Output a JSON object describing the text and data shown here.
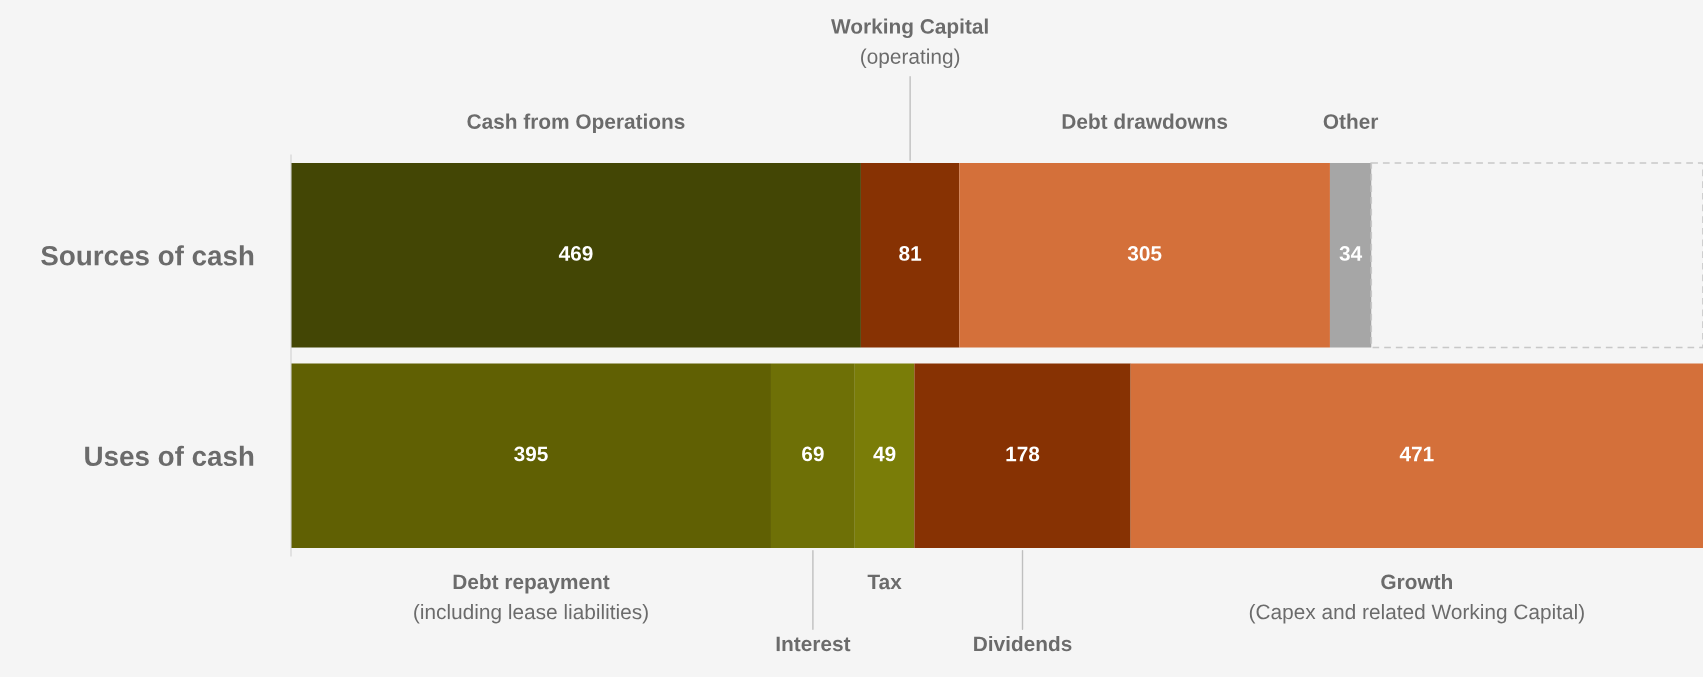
{
  "chart_data": {
    "type": "bar",
    "orientation": "horizontal",
    "stacked": true,
    "data_labels": true,
    "categories": [
      "Sources of cash",
      "Uses of cash"
    ],
    "series": [
      {
        "name": "Cash from Operations",
        "color": "#434605",
        "values": [
          469,
          null
        ]
      },
      {
        "name": "Working Capital\n(operating)",
        "color": "#873203",
        "values": [
          81,
          null
        ]
      },
      {
        "name": "Debt drawdowns",
        "color": "#d4703a",
        "values": [
          305,
          null
        ]
      },
      {
        "name": "Other",
        "color": "#a6a6a6",
        "values": [
          34,
          null
        ]
      },
      {
        "color": "#c8c8c8",
        "line_style": "dashed",
        "values": [
          273,
          null
        ],
        "value_labels": [
          null,
          null
        ]
      },
      {
        "name": "Debt repayment\n(including lease liabilities)",
        "color": "#606003",
        "values": [
          null,
          395
        ]
      },
      {
        "name": "Interest",
        "color": "#6e7006",
        "values": [
          null,
          69
        ]
      },
      {
        "name": "Tax",
        "color": "#7a7d08",
        "values": [
          null,
          49
        ]
      },
      {
        "name": "Dividends",
        "color": "#873203",
        "values": [
          null,
          178
        ]
      },
      {
        "name": "Growth\n(Capex and related Working Capital)",
        "color": "#d4703a",
        "values": [
          null,
          471
        ]
      }
    ]
  }
}
